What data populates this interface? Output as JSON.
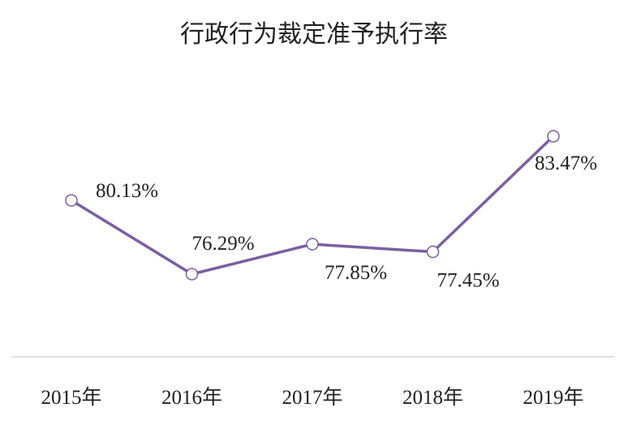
{
  "chart_data": {
    "type": "line",
    "title": "行政行为裁定准予执行率",
    "categories": [
      "2015年",
      "2016年",
      "2017年",
      "2018年",
      "2019年"
    ],
    "series": [
      {
        "values": [
          80.13,
          76.29,
          77.85,
          77.45,
          83.47
        ],
        "labels": [
          "80.13%",
          "76.29%",
          "77.85%",
          "77.45%",
          "83.47%"
        ],
        "color": "#7b5fa0"
      }
    ],
    "grid": false,
    "legend": "none"
  }
}
